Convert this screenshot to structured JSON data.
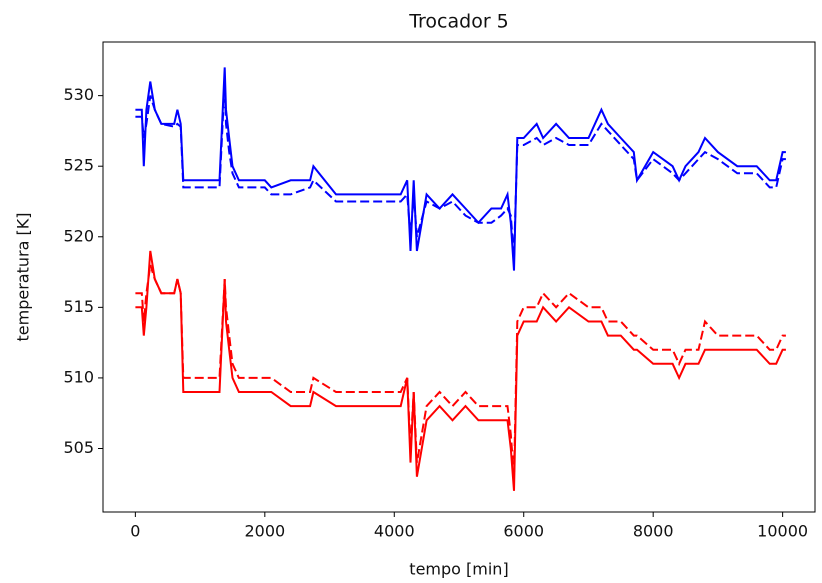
{
  "chart_data": {
    "type": "line",
    "title": "Trocador 5",
    "xlabel": "tempo [min]",
    "ylabel": "temperatura [K]",
    "x": [
      0,
      100,
      130,
      170,
      230,
      300,
      400,
      600,
      650,
      700,
      740,
      1300,
      1380,
      1400,
      1450,
      1500,
      1600,
      2000,
      2100,
      2400,
      2700,
      2750,
      3100,
      3500,
      4100,
      4200,
      4250,
      4300,
      4350,
      4500,
      4700,
      4900,
      5100,
      5300,
      5500,
      5650,
      5750,
      5800,
      5850,
      5900,
      6000,
      6200,
      6300,
      6500,
      6700,
      7000,
      7200,
      7300,
      7500,
      7700,
      7750,
      8000,
      8300,
      8400,
      8500,
      8700,
      8800,
      9000,
      9300,
      9600,
      9800,
      9900,
      10000,
      10050
    ],
    "series": [
      {
        "color": "#0000ff",
        "linestyle": "solid",
        "values": [
          529,
          529,
          525,
          529,
          531,
          529,
          528,
          528,
          529,
          528,
          524,
          524,
          532,
          529,
          527,
          525,
          524,
          524,
          523.5,
          524,
          524,
          525,
          523,
          523,
          523,
          524,
          519,
          524,
          519,
          523,
          522,
          523,
          522,
          521,
          522,
          522,
          523,
          521,
          517.6,
          527,
          527,
          528,
          527,
          528,
          527,
          527,
          529,
          528,
          527,
          526,
          524,
          526,
          525,
          524,
          525,
          526,
          527,
          526,
          525,
          525,
          524,
          524,
          526,
          526
        ]
      },
      {
        "color": "#0000ff",
        "linestyle": "dashed",
        "values": [
          528.5,
          528.5,
          527,
          528,
          530,
          529,
          528,
          527.8,
          528,
          527.8,
          523.5,
          523.5,
          531,
          528,
          526,
          524.5,
          523.5,
          523.5,
          523,
          523,
          523.5,
          524,
          522.5,
          522.5,
          522.5,
          523,
          520,
          523,
          520,
          522.5,
          522,
          522.5,
          521.5,
          521,
          521,
          521.5,
          522,
          521.5,
          518.5,
          526.5,
          526.5,
          527,
          526.5,
          527,
          526.5,
          526.5,
          528,
          527.5,
          526.5,
          525.5,
          524,
          525.5,
          524.5,
          524,
          524.5,
          525.5,
          526,
          525.5,
          524.5,
          524.5,
          523.5,
          523.5,
          525.5,
          525.5
        ]
      },
      {
        "color": "#ff0000",
        "linestyle": "solid",
        "values": [
          515,
          515,
          513,
          515,
          519,
          517,
          516,
          516,
          517,
          516,
          509,
          509,
          517,
          514,
          512,
          510,
          509,
          509,
          509,
          508,
          508,
          509,
          508,
          508,
          508,
          510,
          504,
          509,
          503,
          507,
          508,
          507,
          508,
          507,
          507,
          507,
          507,
          505,
          502,
          513,
          514,
          514,
          515,
          514,
          515,
          514,
          514,
          513,
          513,
          512,
          512,
          511,
          511,
          510,
          511,
          511,
          512,
          512,
          512,
          512,
          511,
          511,
          512,
          512
        ]
      },
      {
        "color": "#ff0000",
        "linestyle": "dashed",
        "values": [
          516,
          516,
          514,
          516,
          518,
          517,
          516,
          516,
          517,
          516,
          510,
          510,
          517,
          515,
          513,
          511,
          510,
          510,
          510,
          509,
          509,
          510,
          509,
          509,
          509,
          510,
          505,
          509,
          504,
          508,
          509,
          508,
          509,
          508,
          508,
          508,
          508,
          506,
          503,
          514,
          515,
          515,
          516,
          515,
          516,
          515,
          515,
          514,
          514,
          513,
          513,
          512,
          512,
          511,
          512,
          512,
          514,
          513,
          513,
          513,
          512,
          512,
          513,
          513
        ]
      }
    ],
    "xlim": [
      -500,
      10500
    ],
    "xticks": [
      0,
      2000,
      4000,
      6000,
      8000,
      10000
    ],
    "ylim": [
      500.5,
      533.8
    ],
    "yticks": [
      505,
      510,
      515,
      520,
      525,
      530
    ],
    "grid": false
  }
}
